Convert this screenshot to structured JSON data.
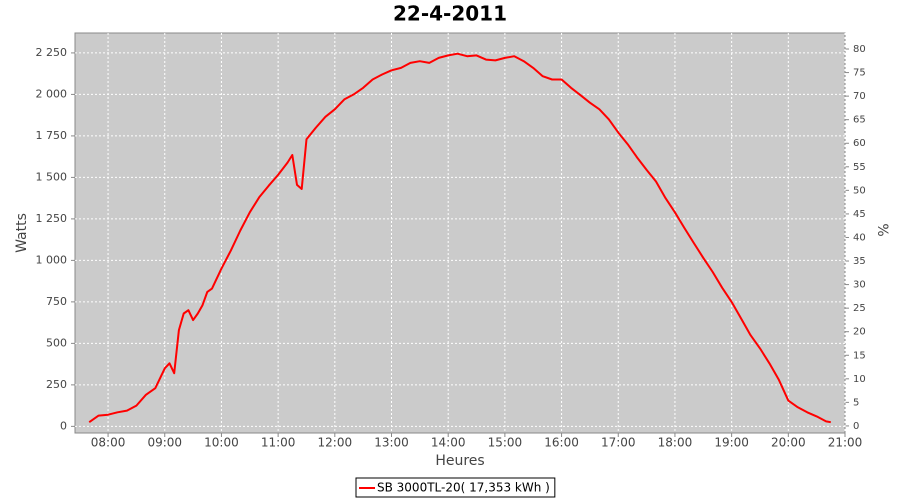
{
  "chart_data": {
    "type": "line",
    "title": "22-4-2011",
    "x_label": "Heures",
    "y_label": "Watts",
    "y2_label": "%",
    "x": [
      "07:40",
      "07:50",
      "08:00",
      "08:10",
      "08:20",
      "08:30",
      "08:40",
      "08:50",
      "09:00",
      "09:05",
      "09:10",
      "09:15",
      "09:20",
      "09:25",
      "09:30",
      "09:35",
      "09:40",
      "09:45",
      "09:50",
      "10:00",
      "10:10",
      "10:20",
      "10:30",
      "10:40",
      "10:50",
      "11:00",
      "11:10",
      "11:15",
      "11:20",
      "11:25",
      "11:30",
      "11:40",
      "11:50",
      "12:00",
      "12:10",
      "12:20",
      "12:30",
      "12:40",
      "12:50",
      "13:00",
      "13:10",
      "13:20",
      "13:30",
      "13:40",
      "13:50",
      "14:00",
      "14:10",
      "14:20",
      "14:30",
      "14:40",
      "14:50",
      "15:00",
      "15:10",
      "15:20",
      "15:30",
      "15:40",
      "15:50",
      "16:00",
      "16:10",
      "16:20",
      "16:30",
      "16:40",
      "16:50",
      "17:00",
      "17:10",
      "17:20",
      "17:30",
      "17:40",
      "17:50",
      "18:00",
      "18:10",
      "18:20",
      "18:30",
      "18:40",
      "18:50",
      "19:00",
      "19:10",
      "19:20",
      "19:30",
      "19:40",
      "19:50",
      "20:00",
      "20:10",
      "20:20",
      "20:30",
      "20:40",
      "20:45"
    ],
    "series": [
      {
        "name": "SB 3000TL-20( 17,353 kWh )",
        "color": "#ff0000",
        "values": [
          25,
          65,
          70,
          85,
          95,
          125,
          190,
          230,
          350,
          380,
          320,
          580,
          680,
          700,
          640,
          680,
          730,
          810,
          830,
          950,
          1060,
          1180,
          1290,
          1380,
          1450,
          1515,
          1590,
          1635,
          1455,
          1430,
          1730,
          1800,
          1865,
          1910,
          1970,
          2000,
          2040,
          2090,
          2120,
          2145,
          2160,
          2190,
          2200,
          2190,
          2220,
          2235,
          2245,
          2230,
          2235,
          2210,
          2205,
          2220,
          2230,
          2200,
          2160,
          2110,
          2090,
          2090,
          2040,
          1995,
          1950,
          1910,
          1850,
          1770,
          1700,
          1620,
          1545,
          1475,
          1375,
          1290,
          1195,
          1105,
          1015,
          930,
          835,
          750,
          650,
          550,
          470,
          380,
          280,
          155,
          115,
          85,
          60,
          30,
          25
        ]
      }
    ],
    "xlim": [
      "07:25",
      "21:00"
    ],
    "xticks": [
      "08:00",
      "09:00",
      "10:00",
      "11:00",
      "12:00",
      "13:00",
      "14:00",
      "15:00",
      "16:00",
      "17:00",
      "18:00",
      "19:00",
      "20:00",
      "21:00"
    ],
    "ylim": [
      -40,
      2370
    ],
    "yticks": [
      0,
      250,
      500,
      750,
      {
        "value": 1000,
        "label": "1 000"
      },
      {
        "value": 1250,
        "label": "1 250"
      },
      {
        "value": 1500,
        "label": "1 500"
      },
      {
        "value": 1750,
        "label": "1 750"
      },
      {
        "value": 2000,
        "label": "2 000"
      },
      {
        "value": 2250,
        "label": "2 250"
      }
    ],
    "y2lim": [
      -1.5,
      83.4
    ],
    "y2ticks": [
      0,
      5,
      10,
      15,
      20,
      25,
      30,
      35,
      40,
      45,
      50,
      55,
      60,
      65,
      70,
      75,
      80
    ],
    "grid": true,
    "legend": "bottom"
  }
}
